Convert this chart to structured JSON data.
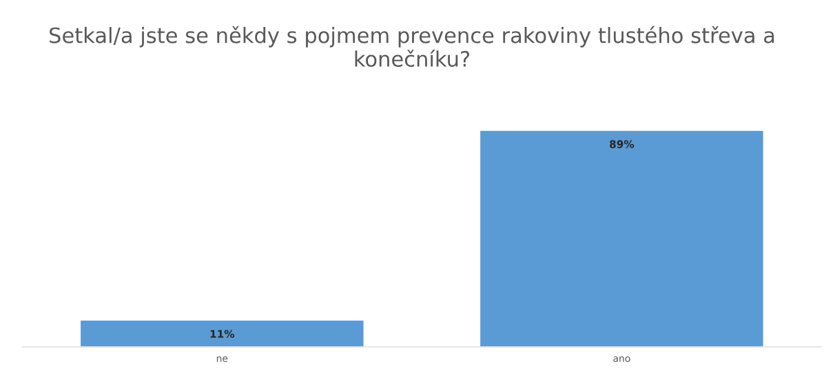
{
  "chart_data": {
    "type": "bar",
    "title": "Setkal/a jste se někdy s pojmem prevence rakoviny tlustého střeva a konečníku?",
    "categories": [
      "ne",
      "ano"
    ],
    "values": [
      11,
      89
    ],
    "color": "#5b9bd5",
    "value_labels": [
      "11%",
      "89%"
    ],
    "grid": false,
    "legend": false
  }
}
